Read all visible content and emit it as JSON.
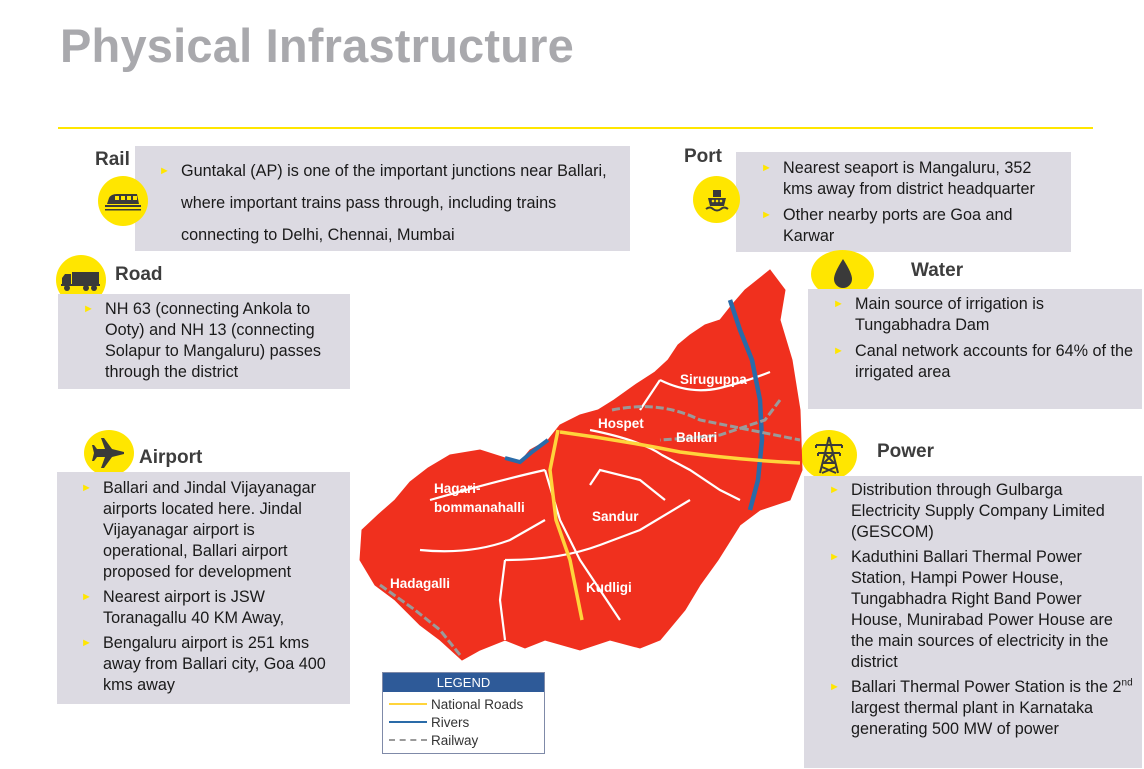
{
  "title": "Physical Infrastructure",
  "rail": {
    "heading": "Rail",
    "icon": "train-icon",
    "bullets": [
      "Guntakal (AP) is one of the important junctions near Ballari, where important trains pass through, including trains connecting to Delhi, Chennai, Mumbai"
    ]
  },
  "port": {
    "heading": "Port",
    "icon": "ship-icon",
    "bullets": [
      "Nearest seaport is Mangaluru, 352 kms away from district headquarter",
      "Other nearby ports are Goa and Karwar"
    ]
  },
  "road": {
    "heading": "Road",
    "icon": "truck-icon",
    "bullets": [
      "NH 63 (connecting Ankola to Ooty) and NH 13 (connecting Solapur to Mangaluru) passes through the district"
    ]
  },
  "water": {
    "heading": "Water",
    "icon": "water-drop-icon",
    "bullets": [
      "Main source of irrigation is Tungabhadra Dam",
      "Canal network accounts for 64% of the irrigated area"
    ]
  },
  "airport": {
    "heading": "Airport",
    "icon": "airplane-icon",
    "bullets": [
      "Ballari and Jindal Vijayanagar airports located here. Jindal Vijayanagar airport is operational, Ballari airport proposed for development",
      "Nearest airport is JSW Toranagallu 40 KM Away,",
      "Bengaluru airport is 251 kms away from Ballari city, Goa 400 kms away"
    ]
  },
  "power": {
    "heading": "Power",
    "icon": "power-tower-icon",
    "bullets": [
      "Distribution through Gulbarga Electricity Supply Company Limited (GESCOM)",
      "Kaduthini Ballari Thermal Power Station, Hampi Power House, Tungabhadra Right Band Power House, Munirabad Power House are the main sources of electricity in the district"
    ],
    "last_bullet": {
      "pre": "Ballari Thermal Power Station is the 2",
      "sup": "nd",
      "post": " largest thermal plant in Karnataka generating 500 MW of power"
    }
  },
  "map": {
    "labels": [
      "Siruguppa",
      "Hospet",
      "Ballari",
      "Hagari-",
      "bommanahalli",
      "Sandur",
      "Hadagalli",
      "Kudligi"
    ],
    "colors": {
      "land": "#f0301e",
      "road": "#ffd43b",
      "river": "#2a6ba8",
      "railway": "#9a9a9a"
    }
  },
  "legend": {
    "title": "LEGEND",
    "items": [
      "National Roads",
      "Rivers",
      "Railway"
    ]
  },
  "accent": "#ffe600"
}
